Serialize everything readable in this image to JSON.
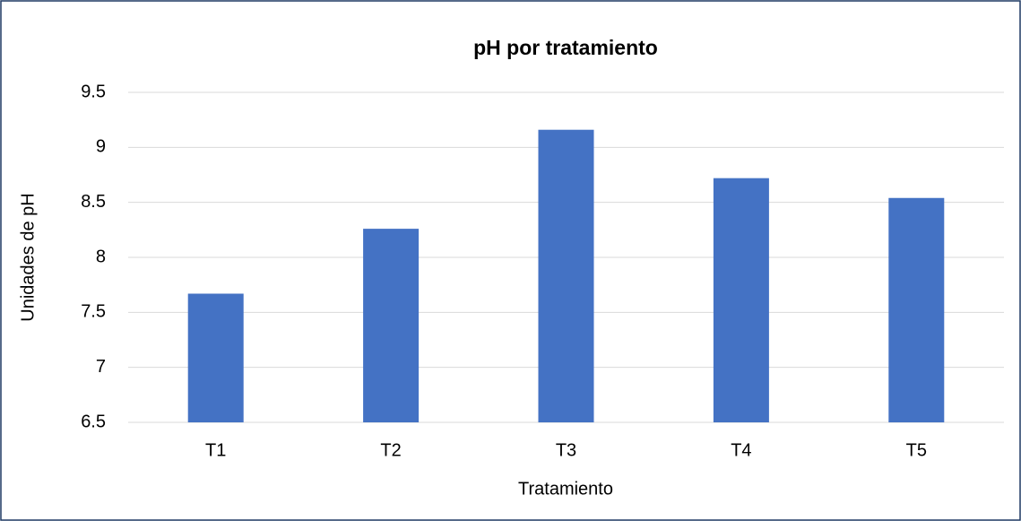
{
  "chart_data": {
    "type": "bar",
    "title": "pH por tratamiento",
    "x_label": "Tratamiento",
    "y_label": "Unidades de pH",
    "categories": [
      "T1",
      "T2",
      "T3",
      "T4",
      "T5"
    ],
    "values": [
      7.67,
      8.26,
      9.16,
      8.72,
      8.54
    ],
    "color": "#4472c4",
    "ylim": [
      6.5,
      9.5
    ],
    "yticks": [
      6.5,
      7,
      7.5,
      8,
      8.5,
      9,
      9.5
    ],
    "grid": true
  }
}
